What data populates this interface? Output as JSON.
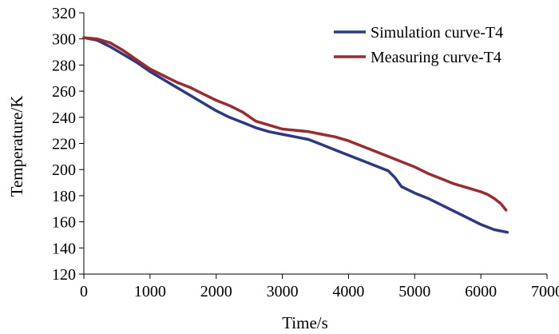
{
  "chart_data": {
    "type": "line",
    "title": "",
    "xlabel": "Time/s",
    "ylabel": "Temperature/K",
    "xlim": [
      0,
      7000
    ],
    "ylim": [
      120,
      320
    ],
    "xticks": [
      0,
      1000,
      2000,
      3000,
      4000,
      5000,
      6000,
      7000
    ],
    "yticks": [
      120,
      140,
      160,
      180,
      200,
      220,
      240,
      260,
      280,
      300,
      320
    ],
    "grid": false,
    "legend_position": "top-right",
    "series": [
      {
        "name": "Simulation curve-T4",
        "color": "#2b3a84",
        "x": [
          0,
          200,
          400,
          600,
          800,
          1000,
          1200,
          1400,
          1600,
          1800,
          2000,
          2200,
          2400,
          2600,
          2800,
          3000,
          3200,
          3400,
          3600,
          3800,
          4000,
          4200,
          4400,
          4600,
          4700,
          4800,
          5000,
          5200,
          5400,
          5600,
          5800,
          6000,
          6200,
          6400
        ],
        "y": [
          301,
          299,
          294,
          288,
          282,
          275,
          269,
          263,
          257,
          251,
          245,
          240,
          236,
          232,
          229,
          227,
          225,
          223,
          219,
          215,
          211,
          207,
          203,
          199,
          194,
          187,
          182,
          178,
          173,
          168,
          163,
          158,
          154,
          152
        ]
      },
      {
        "name": "Measuring curve-T4",
        "color": "#9e2a2b",
        "x": [
          0,
          200,
          400,
          600,
          800,
          1000,
          1200,
          1400,
          1600,
          1800,
          2000,
          2200,
          2400,
          2600,
          2800,
          3000,
          3200,
          3400,
          3600,
          3800,
          4000,
          4200,
          4400,
          4600,
          4800,
          5000,
          5200,
          5400,
          5600,
          5800,
          6000,
          6100,
          6200,
          6300,
          6380
        ],
        "y": [
          301,
          300,
          297,
          291,
          284,
          277,
          272,
          267,
          263,
          258,
          253,
          249,
          244,
          237,
          234,
          231,
          230,
          229,
          227,
          225,
          222,
          218,
          214,
          210,
          206,
          202,
          197,
          193,
          189,
          186,
          183,
          181,
          178,
          174,
          169
        ]
      }
    ]
  },
  "colors": {
    "axis": "#000000",
    "background": "#ffffff"
  }
}
